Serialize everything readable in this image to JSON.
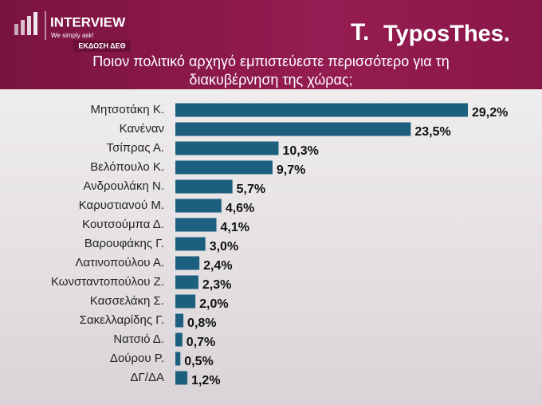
{
  "header": {
    "brand": "INTERVIEW",
    "tagline": "We simply ask!",
    "edition": "ΕΚΔΟΣΗ ΔΕΘ",
    "logo_mark": "T.",
    "logo": "TyposThes."
  },
  "chart_data": {
    "type": "bar",
    "orientation": "horizontal",
    "title": "Ποιον πολιτικό αρχηγό εμπιστεύεστε περισσότερο για τη διακυβέρνηση της χώρας;",
    "categories": [
      "Μητσοτάκη Κ.",
      "Κανέναν",
      "Τσίπρας Α.",
      "Βελόπουλο Κ.",
      "Ανδρουλάκη Ν.",
      "Καρυστιανού Μ.",
      "Κουτσούμπα Δ.",
      "Βαρουφάκης Γ.",
      "Λατινοπούλου Α.",
      "Κωνσταντοπούλου Ζ.",
      "Κασσελάκη Σ.",
      "Σακελλαρίδης Γ.",
      "Νατσιό Δ.",
      "Δούρου Ρ.",
      "ΔΓ/ΔΑ"
    ],
    "values": [
      29.2,
      23.5,
      10.3,
      9.7,
      5.7,
      4.6,
      4.1,
      3.0,
      2.4,
      2.3,
      2.0,
      0.8,
      0.7,
      0.5,
      1.2
    ],
    "value_labels": [
      "29,2%",
      "23,5%",
      "10,3%",
      "9,7%",
      "5,7%",
      "4,6%",
      "4,1%",
      "3,0%",
      "2,4%",
      "2,3%",
      "2,0%",
      "0,8%",
      "0,7%",
      "0,5%",
      "1,2%"
    ],
    "color": "#1c5f7f"
  }
}
